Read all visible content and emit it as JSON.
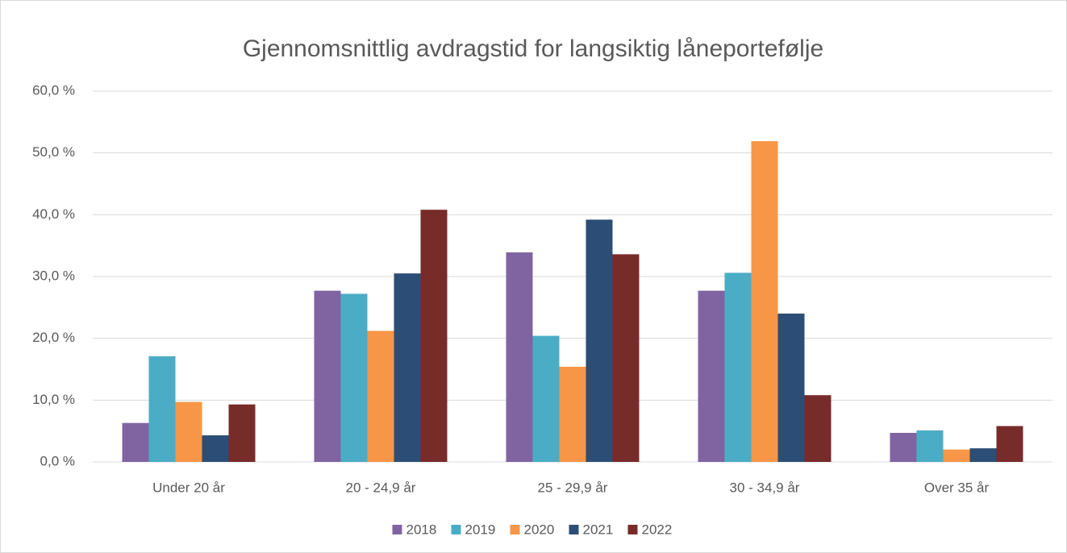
{
  "chart_data": {
    "type": "bar",
    "title": "Gjennomsnittlig avdragstid for langsiktig låneportefølje",
    "categories": [
      "Under 20 år",
      "20 - 24,9 år",
      "25 - 29,9 år",
      "30 - 34,9 år",
      "Over 35 år"
    ],
    "series": [
      {
        "name": "2018",
        "color": "#8064a2",
        "values": [
          6.3,
          27.7,
          33.9,
          27.7,
          4.7
        ]
      },
      {
        "name": "2019",
        "color": "#4bacc6",
        "values": [
          17.1,
          27.2,
          20.4,
          30.6,
          5.1
        ]
      },
      {
        "name": "2020",
        "color": "#f79646",
        "values": [
          9.7,
          21.2,
          15.4,
          51.9,
          2.0
        ]
      },
      {
        "name": "2021",
        "color": "#2c4d75",
        "values": [
          4.3,
          30.5,
          39.2,
          24.0,
          2.2
        ]
      },
      {
        "name": "2022",
        "color": "#772c2a",
        "values": [
          9.3,
          40.8,
          33.6,
          10.8,
          5.8
        ]
      }
    ],
    "ylim": [
      0,
      60
    ],
    "yticks": [
      {
        "value": 0,
        "label": "0,0 %"
      },
      {
        "value": 10,
        "label": "10,0 %"
      },
      {
        "value": 20,
        "label": "20,0 %"
      },
      {
        "value": 30,
        "label": "30,0 %"
      },
      {
        "value": 40,
        "label": "40,0 %"
      },
      {
        "value": 50,
        "label": "50,0 %"
      },
      {
        "value": 60,
        "label": "60,0 %"
      }
    ],
    "grid": true,
    "legend": "bottom"
  }
}
